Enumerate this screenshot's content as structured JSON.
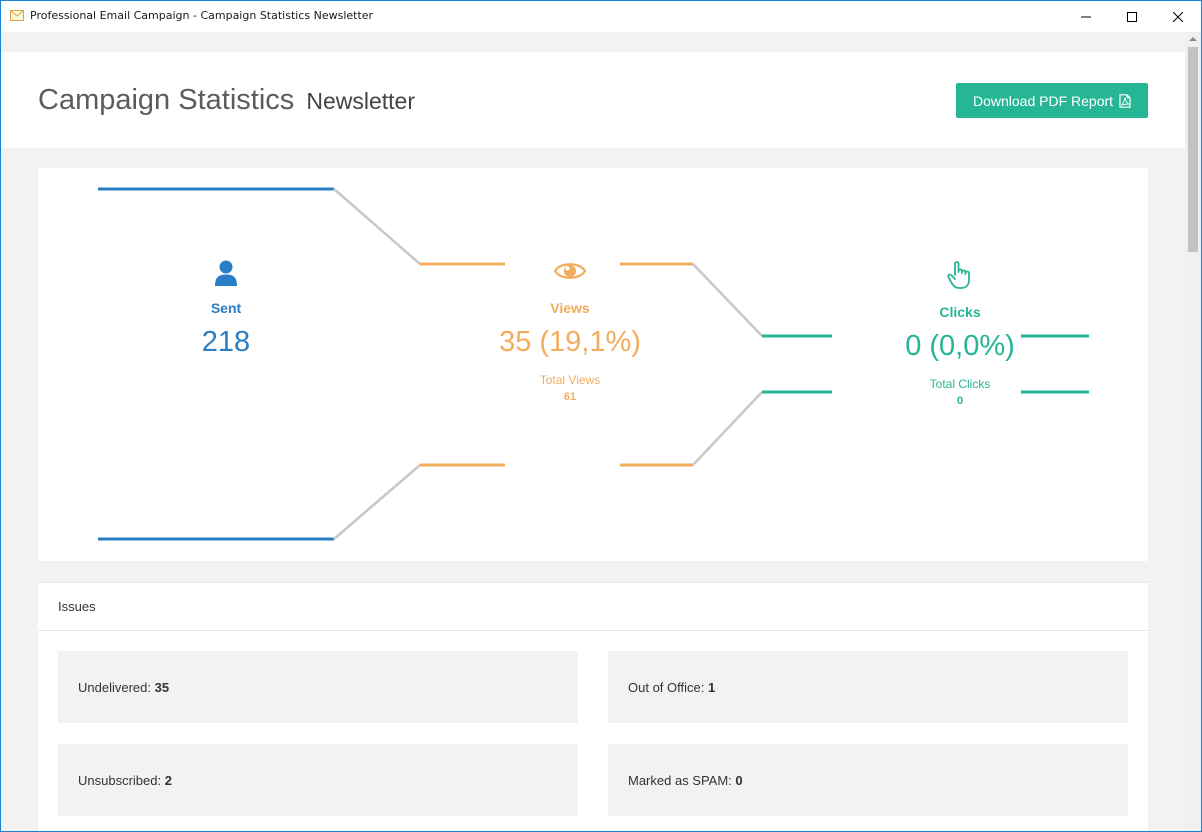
{
  "window": {
    "title": "Professional Email Campaign - Campaign Statistics Newsletter",
    "app_icon": "envelope-icon"
  },
  "header": {
    "title": "Campaign Statistics",
    "subtitle": "Newsletter",
    "pdf_button_label": "Download PDF Report",
    "pdf_button_icon": "pdf-file-icon"
  },
  "funnel": {
    "sent": {
      "icon": "user-icon",
      "label": "Sent",
      "value": "218",
      "color": "#2a7ec5"
    },
    "views": {
      "icon": "eye-icon",
      "label": "Views",
      "value": "35 (19,1%)",
      "sub_label": "Total Views",
      "sub_value": "61",
      "color": "#f2ad5c"
    },
    "clicks": {
      "icon": "hand-pointer-icon",
      "label": "Clicks",
      "value": "0 (0,0%)",
      "sub_label": "Total Clicks",
      "sub_value": "0",
      "color": "#26b595"
    },
    "connector_color": "#c8c8c8"
  },
  "issues": {
    "title": "Issues",
    "items": [
      {
        "label": "Undelivered:",
        "value": "35"
      },
      {
        "label": "Out of Office:",
        "value": "1"
      },
      {
        "label": "Unsubscribed:",
        "value": "2"
      },
      {
        "label": "Marked as SPAM:",
        "value": "0"
      }
    ]
  }
}
